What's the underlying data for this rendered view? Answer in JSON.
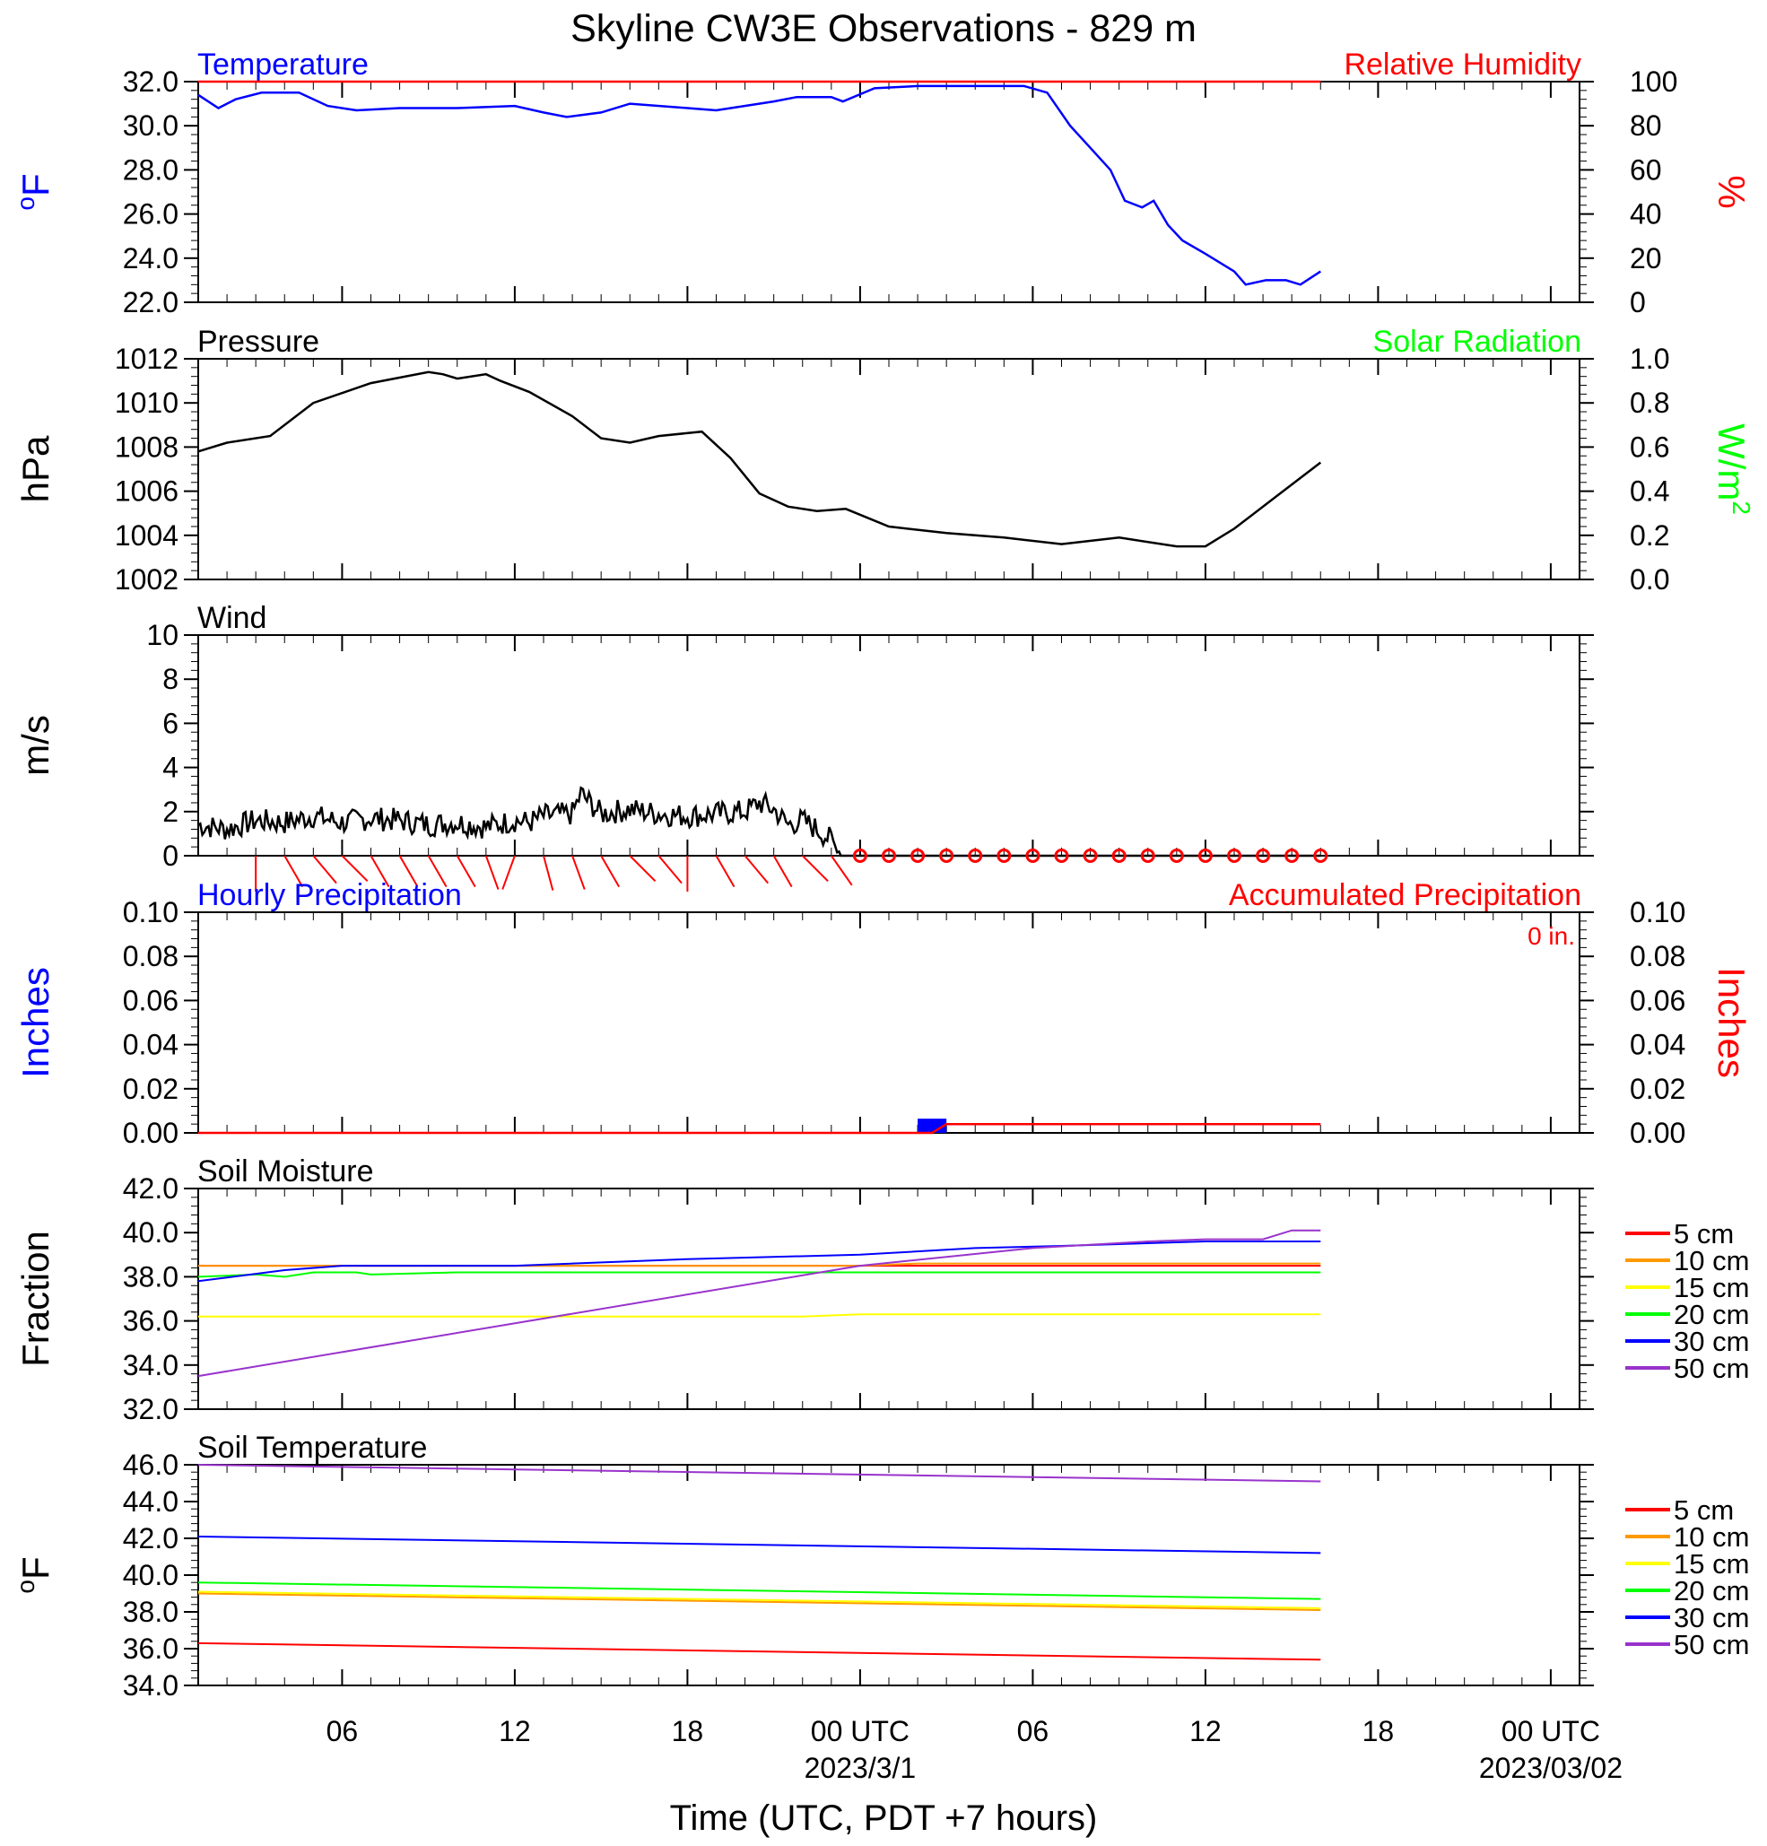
{
  "title": "Skyline CW3E Observations - 829 m",
  "colors": {
    "temperature": "#0000ff",
    "relative_humidity": "#ff0000",
    "pressure": "#000000",
    "solar_radiation": "#00ff00",
    "wind": "#000000",
    "wind_barb": "#ff0000",
    "hourly_precip": "#0000ff",
    "accum_precip": "#ff0000",
    "depth_5cm": "#ff0000",
    "depth_10cm": "#ff9900",
    "depth_15cm": "#ffff00",
    "depth_20cm": "#00ff00",
    "depth_30cm": "#0000ff",
    "depth_50cm": "#9933cc"
  },
  "time_axis": {
    "xlabel": "Time (UTC, PDT +7 hours)",
    "x_range_hours": [
      -23,
      25
    ],
    "ticks": [
      {
        "hour": -18,
        "label": "06",
        "date": ""
      },
      {
        "hour": -12,
        "label": "12",
        "date": ""
      },
      {
        "hour": -6,
        "label": "18",
        "date": ""
      },
      {
        "hour": 0,
        "label": "00 UTC",
        "date": "2023/3/1"
      },
      {
        "hour": 6,
        "label": "06",
        "date": ""
      },
      {
        "hour": 12,
        "label": "12",
        "date": ""
      },
      {
        "hour": 18,
        "label": "18",
        "date": ""
      },
      {
        "hour": 24,
        "label": "00 UTC",
        "date": "2023/03/02"
      }
    ]
  },
  "chart_data": [
    {
      "type": "line",
      "title": "Temperature",
      "title_right": "Relative Humidity",
      "ylabel": "°F",
      "ylabel_right": "%",
      "ylim": [
        22,
        32
      ],
      "yticks": [
        "22.0",
        "24.0",
        "26.0",
        "28.0",
        "30.0",
        "32.0"
      ],
      "ylim_right": [
        0,
        100
      ],
      "yticks_right": [
        "0",
        "20",
        "40",
        "60",
        "80",
        "100"
      ],
      "series": [
        {
          "name": "Temperature",
          "color_key": "temperature",
          "axis": "left",
          "x": [
            -23,
            -22.3,
            -21.7,
            -20.8,
            -19.5,
            -18.5,
            -17.5,
            -16,
            -14,
            -12,
            -11,
            -10.2,
            -9,
            -8,
            -6,
            -5,
            -3,
            -2.2,
            -1,
            -0.6,
            0.5,
            2,
            4,
            5.7,
            6.5,
            7.3,
            8,
            8.7,
            9.2,
            9.8,
            10.2,
            10.7,
            11.2,
            12,
            13,
            13.4,
            14.1,
            14.8,
            15.3,
            16
          ],
          "values": [
            31.4,
            30.8,
            31.2,
            31.5,
            31.5,
            30.9,
            30.7,
            30.8,
            30.8,
            30.9,
            30.6,
            30.4,
            30.6,
            31,
            30.8,
            30.7,
            31.1,
            31.3,
            31.3,
            31.1,
            31.7,
            31.8,
            31.8,
            31.8,
            31.5,
            30,
            29,
            28,
            26.6,
            26.3,
            26.6,
            25.5,
            24.8,
            24.2,
            23.4,
            22.8,
            23,
            23,
            22.8,
            23.4
          ]
        },
        {
          "name": "Relative Humidity",
          "color_key": "relative_humidity",
          "axis": "right",
          "x": [
            -23,
            16
          ],
          "values": [
            100,
            100
          ]
        }
      ]
    },
    {
      "type": "line",
      "title": "Pressure",
      "title_right": "Solar Radiation",
      "ylabel": "hPa",
      "ylabel_right": "W/m",
      "ylabel_right_sup": "2",
      "ylim": [
        1002,
        1012
      ],
      "yticks": [
        "1002",
        "1004",
        "1006",
        "1008",
        "1010",
        "1012"
      ],
      "ylim_right": [
        0,
        1
      ],
      "yticks_right": [
        "0.0",
        "0.2",
        "0.4",
        "0.6",
        "0.8",
        "1.0"
      ],
      "series": [
        {
          "name": "Pressure",
          "color_key": "pressure",
          "axis": "left",
          "x": [
            -23,
            -22,
            -20.5,
            -19,
            -17,
            -15,
            -14.5,
            -14,
            -13,
            -12.5,
            -11.5,
            -10,
            -9,
            -8,
            -7,
            -5.5,
            -4.5,
            -3.5,
            -2.5,
            -1.5,
            -0.5,
            1,
            3,
            5,
            7,
            9,
            11,
            12,
            13,
            14.5,
            16
          ],
          "values": [
            1007.8,
            1008.2,
            1008.5,
            1010,
            1010.9,
            1011.4,
            1011.3,
            1011.1,
            1011.3,
            1011,
            1010.5,
            1009.4,
            1008.4,
            1008.2,
            1008.5,
            1008.7,
            1007.5,
            1005.9,
            1005.3,
            1005.1,
            1005.2,
            1004.4,
            1004.1,
            1003.9,
            1003.6,
            1003.9,
            1003.5,
            1003.5,
            1004.3,
            1005.8,
            1007.3
          ]
        }
      ]
    },
    {
      "type": "line",
      "title": "Wind",
      "ylabel": "m/s",
      "ylim": [
        0,
        10
      ],
      "yticks": [
        "0",
        "2",
        "4",
        "6",
        "8",
        "10"
      ],
      "series": [
        {
          "name": "Wind",
          "color_key": "wind",
          "axis": "left",
          "x": [
            -23,
            -22,
            -21,
            -20,
            -19,
            -18,
            -17,
            -16,
            -15,
            -14,
            -13,
            -12,
            -11.5,
            -11,
            -10,
            -9.7,
            -9,
            -8,
            -7,
            -6,
            -5,
            -4,
            -3.5,
            -3,
            -2.5,
            -2,
            -1.5,
            -1,
            -0.8,
            -0.6
          ],
          "values": [
            1.4,
            1.2,
            1.6,
            1.5,
            1.8,
            1.5,
            1.7,
            1.6,
            1.4,
            1.5,
            1.3,
            1.6,
            1.5,
            1.8,
            1.9,
            2.8,
            1.9,
            2.1,
            1.9,
            1.8,
            1.9,
            2.0,
            2.4,
            2.1,
            1.4,
            1.6,
            1.2,
            0.7,
            0.3,
            0.0
          ]
        },
        {
          "name": "Wind (calm)",
          "color_key": "wind",
          "axis": "left",
          "x": [
            -0.6,
            16
          ],
          "values": [
            0,
            0
          ]
        }
      ],
      "calm_markers_hours": [
        0,
        1,
        2,
        3,
        4,
        5,
        6,
        7,
        8,
        9,
        10,
        11,
        12,
        13,
        14,
        15,
        16
      ],
      "barbs": [
        {
          "hour": -21,
          "dir_deg": 180
        },
        {
          "hour": -20,
          "dir_deg": 210
        },
        {
          "hour": -19,
          "dir_deg": 220
        },
        {
          "hour": -18,
          "dir_deg": 225
        },
        {
          "hour": -17,
          "dir_deg": 210
        },
        {
          "hour": -16,
          "dir_deg": 210
        },
        {
          "hour": -15,
          "dir_deg": 210
        },
        {
          "hour": -14,
          "dir_deg": 210
        },
        {
          "hour": -13,
          "dir_deg": 200
        },
        {
          "hour": -12,
          "dir_deg": 160
        },
        {
          "hour": -11,
          "dir_deg": 195
        },
        {
          "hour": -10,
          "dir_deg": 200
        },
        {
          "hour": -9,
          "dir_deg": 210
        },
        {
          "hour": -8,
          "dir_deg": 225
        },
        {
          "hour": -7,
          "dir_deg": 220
        },
        {
          "hour": -6,
          "dir_deg": 180
        },
        {
          "hour": -5,
          "dir_deg": 210
        },
        {
          "hour": -4,
          "dir_deg": 220
        },
        {
          "hour": -3,
          "dir_deg": 210
        },
        {
          "hour": -2,
          "dir_deg": 225
        },
        {
          "hour": -1,
          "dir_deg": 215
        }
      ]
    },
    {
      "type": "bar",
      "title": "Hourly Precipitation",
      "title_right": "Accumulated Precipitation",
      "annotation": "0 in.",
      "ylabel": "Inches",
      "ylabel_right": "Inches",
      "ylim": [
        0,
        0.1
      ],
      "yticks": [
        "0.00",
        "0.02",
        "0.04",
        "0.06",
        "0.08",
        "0.10"
      ],
      "ylim_right": [
        0,
        0.1
      ],
      "yticks_right": [
        "0.00",
        "0.02",
        "0.04",
        "0.06",
        "0.08",
        "0.10"
      ],
      "bars": [
        {
          "hour_start": 2,
          "hour_end": 3,
          "value": 0.004
        }
      ],
      "series": [
        {
          "name": "Accumulated Precipitation",
          "color_key": "accum_precip",
          "axis": "right",
          "x": [
            -23,
            2.5,
            3,
            16
          ],
          "values": [
            0,
            0,
            0.004,
            0.004
          ]
        }
      ]
    },
    {
      "type": "line",
      "title": "Soil Moisture",
      "ylabel": "Fraction",
      "ylim": [
        32,
        42
      ],
      "yticks": [
        "32.0",
        "34.0",
        "36.0",
        "38.0",
        "40.0",
        "42.0"
      ],
      "series": [
        {
          "name": "5 cm",
          "color_key": "depth_5cm",
          "x": [
            -23,
            16
          ],
          "values": [
            38.5,
            38.5
          ]
        },
        {
          "name": "10 cm",
          "color_key": "depth_10cm",
          "x": [
            -23,
            0,
            2,
            16
          ],
          "values": [
            38.5,
            38.5,
            38.6,
            38.6
          ]
        },
        {
          "name": "15 cm",
          "color_key": "depth_15cm",
          "x": [
            -23,
            -2,
            0,
            16
          ],
          "values": [
            36.2,
            36.2,
            36.3,
            36.3
          ]
        },
        {
          "name": "20 cm",
          "color_key": "depth_20cm",
          "x": [
            -23,
            -21,
            -20,
            -19,
            -17.5,
            -17,
            -14,
            -10,
            0,
            16
          ],
          "values": [
            38.0,
            38.1,
            38.0,
            38.2,
            38.2,
            38.1,
            38.2,
            38.2,
            38.2,
            38.2
          ]
        },
        {
          "name": "30 cm",
          "color_key": "depth_30cm",
          "x": [
            -23,
            -20,
            -18,
            -12,
            -6,
            0,
            4,
            7,
            12,
            14,
            16
          ],
          "values": [
            37.8,
            38.3,
            38.5,
            38.5,
            38.8,
            39.0,
            39.3,
            39.4,
            39.6,
            39.6,
            39.6
          ]
        },
        {
          "name": "50 cm",
          "color_key": "depth_50cm",
          "x": [
            -23,
            0,
            6,
            10,
            12,
            14,
            15,
            16
          ],
          "values": [
            33.5,
            38.5,
            39.3,
            39.6,
            39.7,
            39.7,
            40.1,
            40.1
          ]
        }
      ],
      "legend": [
        "5 cm",
        "10 cm",
        "15 cm",
        "20 cm",
        "30 cm",
        "50 cm"
      ]
    },
    {
      "type": "line",
      "title": "Soil Temperature",
      "ylabel": "°F",
      "ylim": [
        34,
        46
      ],
      "yticks": [
        "34.0",
        "36.0",
        "38.0",
        "40.0",
        "42.0",
        "44.0",
        "46.0"
      ],
      "series": [
        {
          "name": "5 cm",
          "color_key": "depth_5cm",
          "x": [
            -23,
            16
          ],
          "values": [
            36.3,
            35.4
          ]
        },
        {
          "name": "10 cm",
          "color_key": "depth_10cm",
          "x": [
            -23,
            16
          ],
          "values": [
            39.0,
            38.1
          ]
        },
        {
          "name": "15 cm",
          "color_key": "depth_15cm",
          "x": [
            -23,
            16
          ],
          "values": [
            39.1,
            38.2
          ]
        },
        {
          "name": "20 cm",
          "color_key": "depth_20cm",
          "x": [
            -23,
            16
          ],
          "values": [
            39.6,
            38.7
          ]
        },
        {
          "name": "30 cm",
          "color_key": "depth_30cm",
          "x": [
            -23,
            16
          ],
          "values": [
            42.1,
            41.2
          ]
        },
        {
          "name": "50 cm",
          "color_key": "depth_50cm",
          "x": [
            -23,
            16
          ],
          "values": [
            46.0,
            45.1
          ]
        }
      ],
      "legend": [
        "5 cm",
        "10 cm",
        "15 cm",
        "20 cm",
        "30 cm",
        "50 cm"
      ]
    }
  ]
}
